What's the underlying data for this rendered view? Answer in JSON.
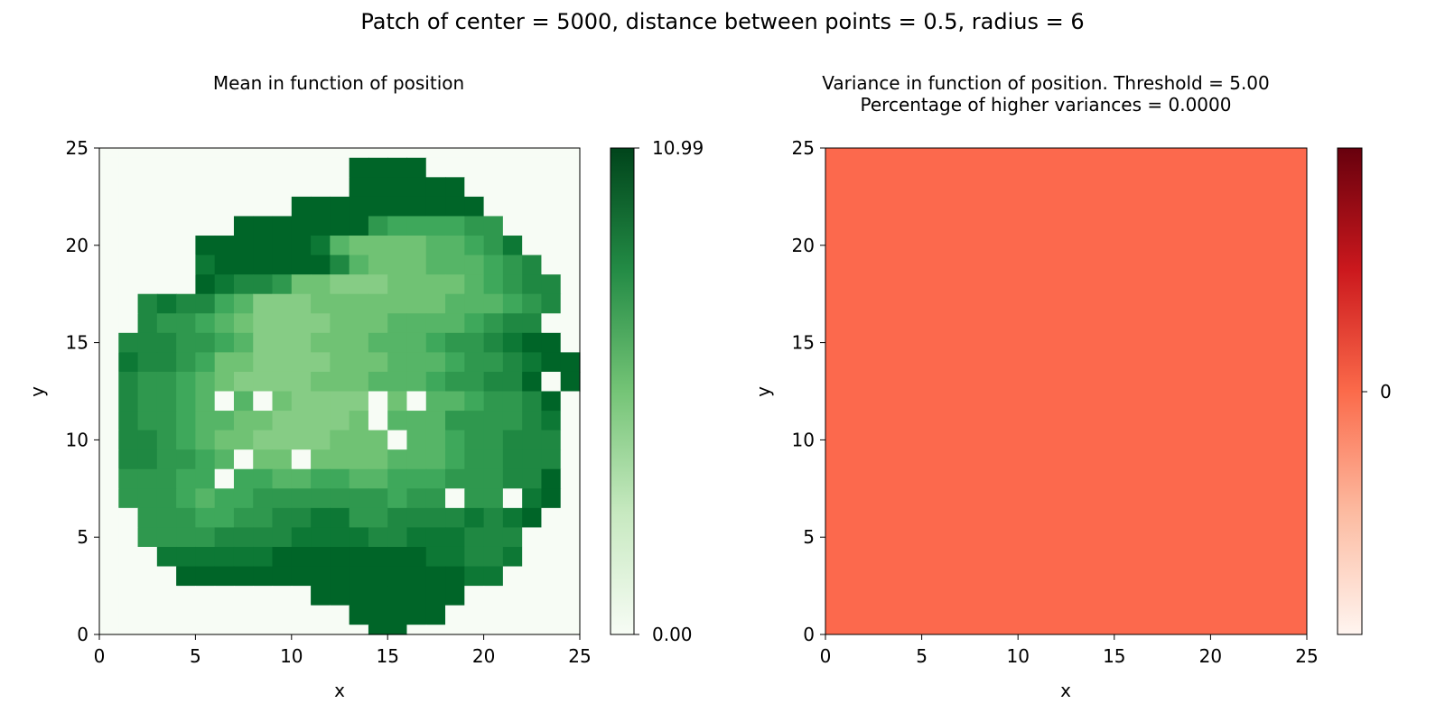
{
  "figure": {
    "suptitle": "Patch of center = 5000, distance between points = 0.5, radius = 6"
  },
  "chart_data": [
    {
      "type": "heatmap",
      "title": "Mean in function of position",
      "xlabel": "x",
      "ylabel": "y",
      "xlim": [
        0,
        25
      ],
      "ylim": [
        0,
        25
      ],
      "xticks": [
        0,
        5,
        10,
        15,
        20,
        25
      ],
      "yticks": [
        0,
        5,
        10,
        15,
        20,
        25
      ],
      "colormap": "Greens",
      "color_low": "#f7fcf5",
      "color_high": "#00441b",
      "colorbar": {
        "min": 0.0,
        "max": 10.99,
        "tick_labels": [
          "10.99",
          "0.00"
        ]
      },
      "rows_top_to_bottom_from_y25": [
        "0000000000000000000000000",
        "0000000000000HHHH00000000",
        "0000000000000HHHHHH000000",
        "0000000000HHHHHHHHHH00000",
        "0000000HHHHHHHEDDDDEE0000",
        "00000HHHHHHGCBBBBCCDEG000",
        "00000GHHHHHHFCBBBCCCDEF00",
        "00000HGFFEBBAAABBBBCDEFF0",
        "00FGFFDCAAABBBBBBBCCCDEF0",
        "00FEEDCBAAAABBBCCCCDEFF00",
        "0FFFEEDCAAABBBCCCDEEFGHH0",
        "0GFFEDBBAAAABBBCCCDEEFGHH",
        "0FEEDCBAAAABBBCCCDEEFFH0H",
        "0FEEDC0C0BAAAA0B0CCDEEFH0",
        "0FEEDCCBBAAAAB0CCCEEEEFG0",
        "0FFEDCBBAAAABBB0CCDEEFFF0",
        "0FFEEDC0BB0BBBBCCCDEEFFF0",
        "0EEEDD0DDCCDDCCDDDEEEFFH0",
        "0EEEDCDDEEEEEEEDEE0EE0GH0",
        "00EEEDDEEFFGGEEFFFFGFGH00",
        "00EEEEFFFFGGGGFFGGGFFF000",
        "000GGGGGGHHHHHHHHGGFFG000",
        "0000HHHHHHHHHHHHHHHGG0000",
        "00000000000HHHHHHHH000000",
        "0000000000000HHHHH0000000",
        "00000000000000HH000000000"
      ],
      "level_values": {
        "0": 0.0,
        "A": 4.95,
        "B": 5.6,
        "C": 6.3,
        "D": 7.0,
        "E": 7.7,
        "F": 8.4,
        "G": 9.1,
        "H": 9.9
      }
    },
    {
      "type": "heatmap",
      "title": "Variance in function of position.  Threshold = 5.00",
      "subtitle": "Percentage of higher variances = 0.0000",
      "xlabel": "x",
      "ylabel": "y",
      "xlim": [
        0,
        25
      ],
      "ylim": [
        0,
        25
      ],
      "xticks": [
        0,
        5,
        10,
        15,
        20,
        25
      ],
      "yticks": [
        0,
        5,
        10,
        15,
        20,
        25
      ],
      "colormap": "Reds",
      "uniform_value": 0,
      "uniform_color": "#fc694d",
      "colorbar": {
        "tick_labels": [
          "0"
        ],
        "gradient": [
          "#fff5f0",
          "#fcbba1",
          "#fb6a4a",
          "#cb181d",
          "#67000d"
        ]
      }
    }
  ]
}
